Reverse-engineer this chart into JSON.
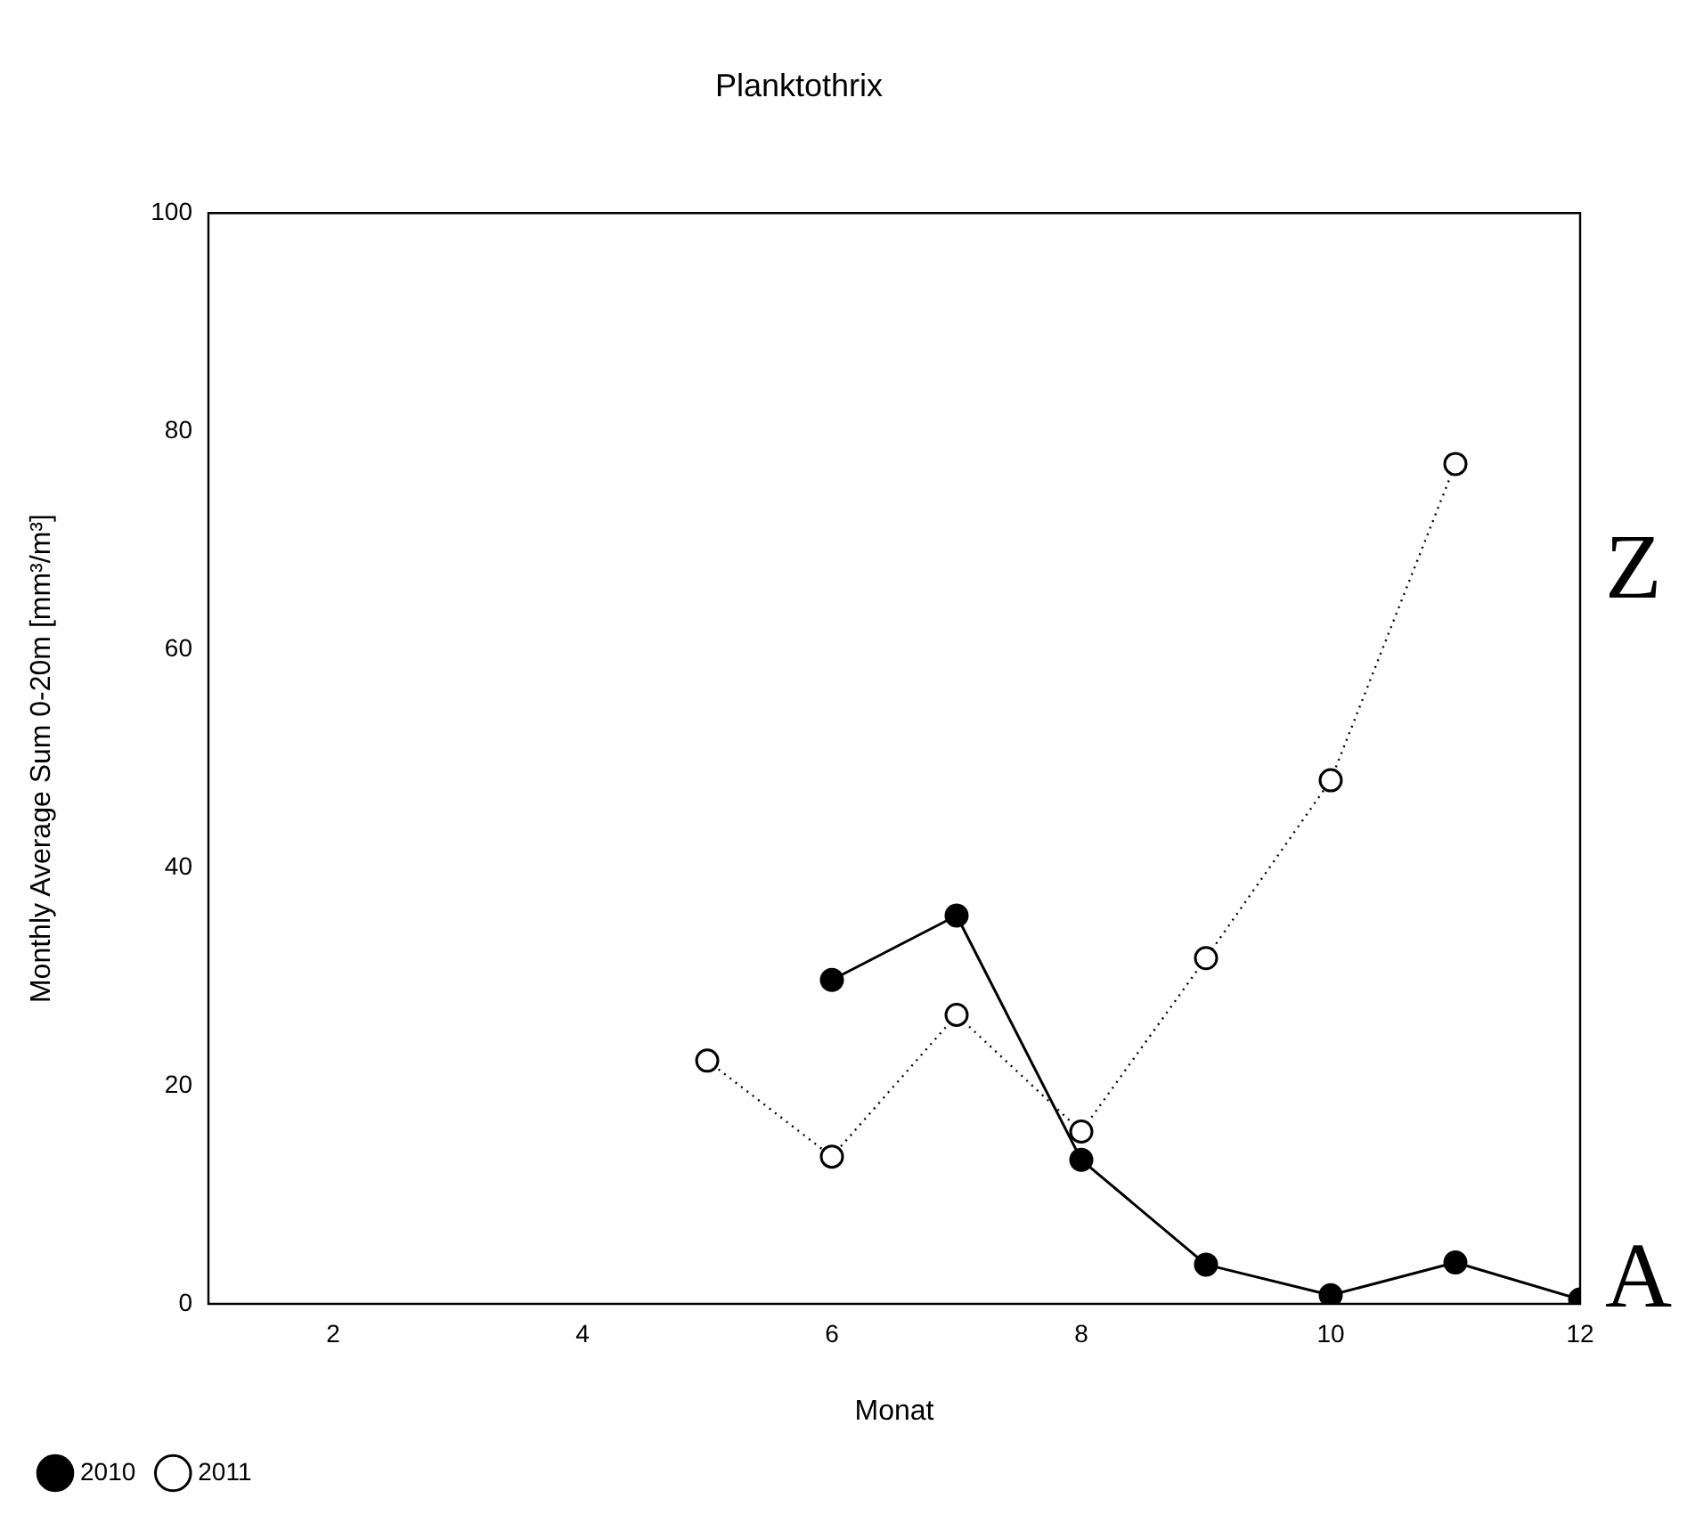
{
  "chart_data": {
    "type": "line",
    "title": "Planktothrix",
    "xlabel": "Monat",
    "ylabel": "Monthly Average Sum 0-20m [mm³/m³]",
    "xlim": [
      1,
      12
    ],
    "xticks": [
      2,
      4,
      6,
      8,
      10,
      12
    ],
    "ylim": [
      0,
      100
    ],
    "yticks": [
      0,
      20,
      40,
      60,
      80,
      100
    ],
    "series": [
      {
        "name": "2010",
        "color": "#000000",
        "line_style": "solid",
        "marker": "circle",
        "x": [
          6,
          7,
          8,
          9,
          10,
          11,
          12
        ],
        "values": [
          29.7,
          35.6,
          13.2,
          3.6,
          0.8,
          3.8,
          0.4
        ]
      },
      {
        "name": "2011",
        "color": "#000000",
        "line_style": "dotted",
        "marker": "circle",
        "x": [
          5,
          6,
          7,
          8,
          9,
          10,
          11
        ],
        "values": [
          22.3,
          13.5,
          26.5,
          15.8,
          31.7,
          48.0,
          77.0
        ]
      }
    ],
    "annotations": [
      "Z",
      "A"
    ],
    "grid": false,
    "legend": "bottom left"
  }
}
